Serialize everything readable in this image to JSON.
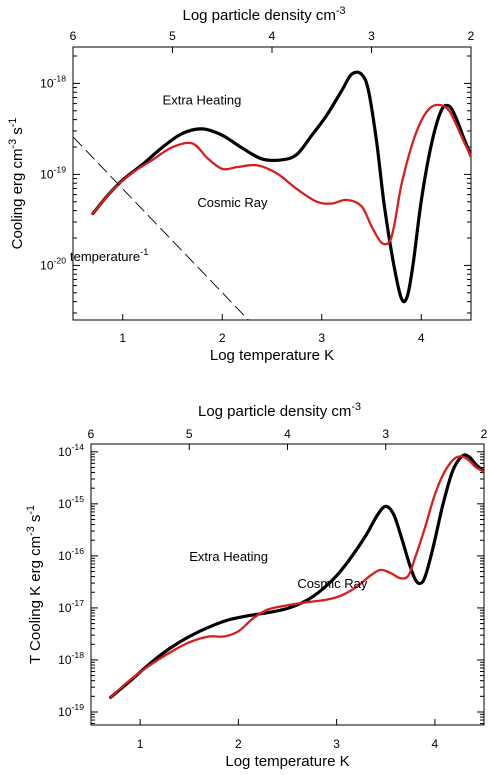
{
  "chart_data": [
    {
      "type": "line",
      "xlabel": "Log temperature K",
      "x2label": "Log particle density cm",
      "x2label_sup": "-3",
      "ylabel": "Cooling erg cm",
      "ylabel_sup1": "-3",
      "ylabel_mid": " s",
      "ylabel_sup2": "-1",
      "xlim": [
        0.5,
        4.5
      ],
      "ylog": true,
      "ylim_exp": [
        -20.6,
        -17.6
      ],
      "x_ticks": [
        {
          "v": 1,
          "label": "1"
        },
        {
          "v": 2,
          "label": "2"
        },
        {
          "v": 3,
          "label": "3"
        },
        {
          "v": 4,
          "label": "4"
        }
      ],
      "x2_ticks": [
        {
          "v": 0.5,
          "label": "6"
        },
        {
          "v": 1.5,
          "label": "5"
        },
        {
          "v": 2.5,
          "label": "4"
        },
        {
          "v": 3.5,
          "label": "3"
        },
        {
          "v": 4.5,
          "label": "2"
        }
      ],
      "y_ticks": [
        {
          "exp": -18,
          "base": "10",
          "sup": "-18"
        },
        {
          "exp": -19,
          "base": "10",
          "sup": "-19"
        },
        {
          "exp": -20,
          "base": "10",
          "sup": "-20"
        }
      ],
      "series": [
        {
          "name": "Extra Heating",
          "color": "#000000",
          "width": 3.2,
          "label_xy": [
            1.4,
            -18.23
          ],
          "x": [
            0.7,
            0.85,
            1.0,
            1.2,
            1.4,
            1.6,
            1.8,
            2.0,
            2.2,
            2.4,
            2.6,
            2.75,
            2.9,
            3.05,
            3.2,
            3.3,
            3.4,
            3.47,
            3.55,
            3.63,
            3.72,
            3.8,
            3.86,
            3.92,
            4.0,
            4.1,
            4.2,
            4.28,
            4.35,
            4.42,
            4.5
          ],
          "y": [
            -19.43,
            -19.23,
            -19.06,
            -18.89,
            -18.7,
            -18.55,
            -18.5,
            -18.57,
            -18.71,
            -18.83,
            -18.84,
            -18.78,
            -18.57,
            -18.35,
            -18.08,
            -17.9,
            -17.9,
            -18.08,
            -18.63,
            -19.35,
            -19.97,
            -20.36,
            -20.34,
            -19.97,
            -19.29,
            -18.68,
            -18.3,
            -18.25,
            -18.38,
            -18.58,
            -18.8
          ]
        },
        {
          "name": "Cosmic Ray",
          "color": "#d81e1e",
          "width": 2.3,
          "label_xy": [
            1.75,
            -19.36
          ],
          "x": [
            0.7,
            0.9,
            1.1,
            1.3,
            1.5,
            1.7,
            1.85,
            2.0,
            2.15,
            2.35,
            2.55,
            2.75,
            2.95,
            3.1,
            3.25,
            3.4,
            3.5,
            3.6,
            3.68,
            3.73,
            3.8,
            3.9,
            4.0,
            4.1,
            4.2,
            4.28,
            4.35,
            4.42,
            4.5
          ],
          "y": [
            -19.43,
            -19.17,
            -18.98,
            -18.84,
            -18.7,
            -18.66,
            -18.82,
            -18.94,
            -18.92,
            -18.9,
            -18.99,
            -19.16,
            -19.3,
            -19.32,
            -19.28,
            -19.35,
            -19.57,
            -19.75,
            -19.74,
            -19.55,
            -19.12,
            -18.7,
            -18.41,
            -18.26,
            -18.24,
            -18.3,
            -18.45,
            -18.62,
            -18.8
          ]
        },
        {
          "name": "",
          "color": "#000000",
          "width": 0.9,
          "dash": "12 6",
          "x": [
            0.38,
            1.0,
            1.5,
            2.0,
            2.5,
            2.62
          ],
          "y": [
            -18.45,
            -19.16,
            -19.73,
            -20.3,
            -20.87,
            -21.0
          ]
        }
      ],
      "annotations": [
        {
          "text": "temperature",
          "sup": "-1",
          "xy": [
            0.47,
            -19.95
          ]
        }
      ]
    },
    {
      "type": "line",
      "xlabel": "Log temperature K",
      "x2label": "Log particle density cm",
      "x2label_sup": "-3",
      "ylabel": "T Cooling K erg cm",
      "ylabel_sup1": "-3",
      "ylabel_mid": " s",
      "ylabel_sup2": "-1",
      "xlim": [
        0.5,
        4.5
      ],
      "ylog": true,
      "ylim_exp": [
        -19.25,
        -13.85
      ],
      "x_ticks": [
        {
          "v": 1,
          "label": "1"
        },
        {
          "v": 2,
          "label": "2"
        },
        {
          "v": 3,
          "label": "3"
        },
        {
          "v": 4,
          "label": "4"
        }
      ],
      "x2_ticks": [
        {
          "v": 0.5,
          "label": "6"
        },
        {
          "v": 1.5,
          "label": "5"
        },
        {
          "v": 2.5,
          "label": "4"
        },
        {
          "v": 3.5,
          "label": "3"
        },
        {
          "v": 4.5,
          "label": "2"
        }
      ],
      "y_ticks": [
        {
          "exp": -14,
          "base": "10",
          "sup": "-14"
        },
        {
          "exp": -15,
          "base": "10",
          "sup": "-15"
        },
        {
          "exp": -16,
          "base": "10",
          "sup": "-16"
        },
        {
          "exp": -17,
          "base": "10",
          "sup": "-17"
        },
        {
          "exp": -18,
          "base": "10",
          "sup": "-18"
        },
        {
          "exp": -19,
          "base": "10",
          "sup": "-19"
        }
      ],
      "series": [
        {
          "name": "Extra Heating",
          "color": "#000000",
          "width": 3.2,
          "label_xy": [
            1.5,
            -16.1
          ],
          "x": [
            0.7,
            0.9,
            1.1,
            1.3,
            1.5,
            1.7,
            1.9,
            2.1,
            2.3,
            2.5,
            2.7,
            2.85,
            3.0,
            3.15,
            3.3,
            3.42,
            3.5,
            3.58,
            3.66,
            3.74,
            3.8,
            3.85,
            3.9,
            3.98,
            4.08,
            4.18,
            4.28,
            4.35,
            4.42,
            4.5
          ],
          "y": [
            -18.72,
            -18.4,
            -18.07,
            -17.78,
            -17.55,
            -17.37,
            -17.23,
            -17.15,
            -17.09,
            -17.01,
            -16.85,
            -16.65,
            -16.38,
            -16.02,
            -15.6,
            -15.2,
            -15.05,
            -15.2,
            -15.65,
            -16.15,
            -16.45,
            -16.53,
            -16.4,
            -15.85,
            -15.03,
            -14.37,
            -14.08,
            -14.1,
            -14.25,
            -14.38
          ]
        },
        {
          "name": "Cosmic Ray",
          "color": "#d81e1e",
          "width": 2.3,
          "label_xy": [
            2.6,
            -16.62
          ],
          "x": [
            0.7,
            0.9,
            1.1,
            1.3,
            1.5,
            1.7,
            1.85,
            2.0,
            2.15,
            2.3,
            2.5,
            2.7,
            2.9,
            3.05,
            3.2,
            3.35,
            3.45,
            3.55,
            3.65,
            3.73,
            3.8,
            3.9,
            4.0,
            4.1,
            4.2,
            4.28,
            4.35,
            4.42,
            4.5
          ],
          "y": [
            -18.72,
            -18.38,
            -18.1,
            -17.86,
            -17.66,
            -17.55,
            -17.55,
            -17.45,
            -17.2,
            -17.03,
            -16.95,
            -16.89,
            -16.84,
            -16.76,
            -16.6,
            -16.37,
            -16.27,
            -16.33,
            -16.43,
            -16.38,
            -16.03,
            -15.45,
            -14.82,
            -14.38,
            -14.13,
            -14.09,
            -14.17,
            -14.3,
            -14.38
          ]
        }
      ],
      "annotations": []
    }
  ]
}
